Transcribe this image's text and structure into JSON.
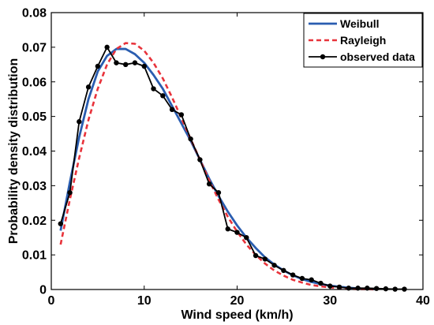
{
  "chart_data": {
    "type": "line",
    "xlabel": "Wind speed (km/h)",
    "ylabel": "Probability density distribution",
    "xlim": [
      0,
      40
    ],
    "ylim": [
      0,
      0.08
    ],
    "xticks": [
      0,
      10,
      20,
      30,
      40
    ],
    "yticks": [
      0,
      0.01,
      0.02,
      0.03,
      0.04,
      0.05,
      0.06,
      0.07,
      0.08
    ],
    "ytick_labels": [
      "0",
      "0.01",
      "0.02",
      "0.03",
      "0.04",
      "0.05",
      "0.06",
      "0.07",
      "0.08"
    ],
    "grid": false,
    "legend_position": "top-right",
    "series": [
      {
        "name": "Weibull",
        "color": "#2a5db0",
        "style": "solid",
        "x": [
          1,
          2,
          3,
          4,
          5,
          6,
          7,
          8,
          9,
          10,
          11,
          12,
          13,
          14,
          15,
          16,
          17,
          18,
          19,
          20,
          21,
          22,
          23,
          24,
          25,
          26,
          27,
          28,
          29,
          30,
          31,
          32,
          33,
          34,
          35
        ],
        "y": [
          0.017,
          0.031,
          0.044,
          0.055,
          0.063,
          0.0675,
          0.0695,
          0.0695,
          0.068,
          0.0655,
          0.062,
          0.058,
          0.053,
          0.048,
          0.043,
          0.0375,
          0.032,
          0.027,
          0.0225,
          0.0185,
          0.015,
          0.012,
          0.0093,
          0.0072,
          0.0055,
          0.0041,
          0.003,
          0.0022,
          0.0016,
          0.0011,
          0.0008,
          0.0005,
          0.0003,
          0.0002,
          0.0001
        ]
      },
      {
        "name": "Rayleigh",
        "color": "#e8333b",
        "style": "dashed",
        "x": [
          1,
          2,
          3,
          4,
          5,
          6,
          7,
          8,
          9,
          10,
          11,
          12,
          13,
          14,
          15,
          16,
          17,
          18,
          19,
          20,
          21,
          22,
          23,
          24,
          25,
          26,
          27,
          28,
          29,
          30,
          31,
          32,
          33,
          34,
          35
        ],
        "y": [
          0.013,
          0.026,
          0.038,
          0.049,
          0.058,
          0.065,
          0.0695,
          0.0712,
          0.071,
          0.069,
          0.0655,
          0.061,
          0.0555,
          0.0495,
          0.0435,
          0.0375,
          0.0315,
          0.026,
          0.021,
          0.0167,
          0.013,
          0.01,
          0.0075,
          0.0055,
          0.004,
          0.0028,
          0.002,
          0.0013,
          0.0009,
          0.0006,
          0.0004,
          0.0002,
          0.0001,
          0.0001,
          0.0
        ]
      },
      {
        "name": "observed data",
        "color": "#000000",
        "style": "solid-markers",
        "x": [
          1,
          2,
          3,
          4,
          5,
          6,
          7,
          8,
          9,
          10,
          11,
          12,
          13,
          14,
          15,
          16,
          17,
          18,
          19,
          20,
          21,
          22,
          23,
          24,
          25,
          26,
          27,
          28,
          29,
          30,
          31,
          32,
          33,
          34,
          35,
          36,
          37,
          38
        ],
        "y": [
          0.019,
          0.028,
          0.0485,
          0.0585,
          0.0645,
          0.07,
          0.0655,
          0.065,
          0.0655,
          0.0645,
          0.058,
          0.056,
          0.052,
          0.0505,
          0.0435,
          0.0375,
          0.0305,
          0.028,
          0.0175,
          0.0165,
          0.015,
          0.0098,
          0.0088,
          0.007,
          0.0055,
          0.0042,
          0.0032,
          0.0028,
          0.0018,
          0.001,
          0.0007,
          0.0004,
          0.0004,
          0.0004,
          0.0003,
          0.0002,
          0.0001,
          0.0001
        ]
      }
    ]
  }
}
